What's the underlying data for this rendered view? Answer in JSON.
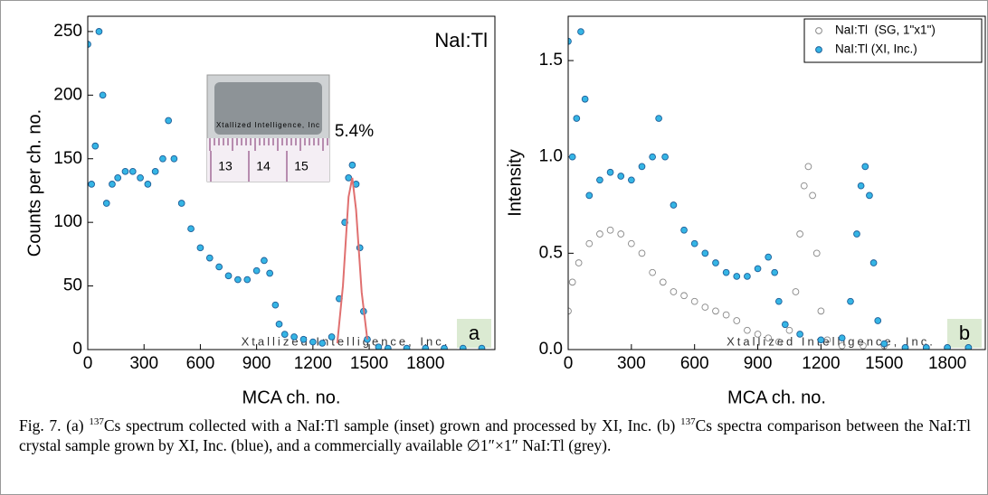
{
  "chart_data": [
    {
      "type": "scatter",
      "ylabel": "Counts per ch. no.",
      "xlabel": "MCA ch. no.",
      "annotations": [
        "NaI:Tl",
        "5.4%"
      ],
      "panel_label": "a",
      "watermark": "Xtallized Intelligence, Inc.",
      "inset": {
        "text": "Xtallized Intelligence, Inc",
        "ruler_labels": [
          "13",
          "14",
          "15"
        ]
      },
      "xlim": [
        0,
        2170
      ],
      "ylim": [
        0,
        262
      ],
      "xticks": [
        0,
        300,
        600,
        900,
        1200,
        1500,
        1800
      ],
      "yticks": [
        0,
        50,
        100,
        150,
        200,
        250
      ],
      "series": [
        {
          "color": "#35b5e5",
          "marker": "filled",
          "x": [
            0,
            20,
            40,
            60,
            80,
            100,
            130,
            160,
            200,
            240,
            280,
            320,
            360,
            400,
            430,
            460,
            500,
            550,
            600,
            650,
            700,
            750,
            800,
            850,
            900,
            940,
            970,
            1000,
            1020,
            1050,
            1100,
            1150,
            1200,
            1250,
            1300,
            1340,
            1370,
            1390,
            1410,
            1430,
            1450,
            1470,
            1490,
            1550,
            1600,
            1700,
            1800,
            1900,
            2000,
            2100
          ],
          "values": [
            240,
            130,
            160,
            250,
            200,
            115,
            130,
            135,
            140,
            140,
            135,
            130,
            140,
            150,
            180,
            150,
            115,
            95,
            80,
            72,
            65,
            58,
            55,
            55,
            62,
            70,
            60,
            35,
            20,
            12,
            10,
            8,
            6,
            5,
            10,
            40,
            100,
            135,
            145,
            130,
            80,
            30,
            8,
            2,
            1,
            1,
            1,
            1,
            1,
            1
          ]
        }
      ],
      "fit": {
        "color": "#e07070",
        "x": [
          1330,
          1360,
          1390,
          1410,
          1430,
          1460,
          1490
        ],
        "values": [
          5,
          50,
          120,
          135,
          110,
          45,
          8
        ]
      }
    },
    {
      "type": "scatter",
      "ylabel": "Intensity",
      "xlabel": "MCA ch. no.",
      "panel_label": "b",
      "watermark": "Xtallized Intelligence, Inc.",
      "legend": "top-right",
      "xlim": [
        0,
        1980
      ],
      "ylim": [
        0,
        1.73
      ],
      "xticks": [
        0,
        300,
        600,
        900,
        1200,
        1500,
        1800
      ],
      "yticks": [
        {
          "value": 0,
          "label": "0.0"
        },
        0.5,
        {
          "value": 1,
          "label": "1.0"
        },
        1.5
      ],
      "series": [
        {
          "name": "NaI:Tl  (SG, 1\"x1\")",
          "color": "#888888",
          "marker": "open",
          "x": [
            0,
            20,
            50,
            100,
            150,
            200,
            250,
            300,
            350,
            400,
            450,
            500,
            550,
            600,
            650,
            700,
            750,
            800,
            850,
            900,
            950,
            1000,
            1050,
            1080,
            1100,
            1120,
            1140,
            1160,
            1180,
            1200,
            1230,
            1300,
            1400,
            1500,
            1600,
            1700,
            1800,
            1900
          ],
          "values": [
            0.2,
            0.35,
            0.45,
            0.55,
            0.6,
            0.62,
            0.6,
            0.55,
            0.5,
            0.4,
            0.35,
            0.3,
            0.28,
            0.25,
            0.22,
            0.2,
            0.18,
            0.15,
            0.1,
            0.08,
            0.06,
            0.04,
            0.1,
            0.3,
            0.6,
            0.85,
            0.95,
            0.8,
            0.5,
            0.2,
            0.05,
            0.02,
            0.02,
            0.02,
            0.01,
            0.01,
            0.01,
            0.01
          ]
        },
        {
          "name": "NaI:Tl (XI, Inc.)",
          "color": "#35b5e5",
          "marker": "filled",
          "x": [
            0,
            20,
            40,
            60,
            80,
            100,
            150,
            200,
            250,
            300,
            350,
            400,
            430,
            460,
            500,
            550,
            600,
            650,
            700,
            750,
            800,
            850,
            900,
            950,
            980,
            1000,
            1030,
            1100,
            1200,
            1300,
            1340,
            1370,
            1390,
            1410,
            1430,
            1450,
            1470,
            1500,
            1600,
            1700,
            1800,
            1900
          ],
          "values": [
            1.6,
            1.0,
            1.2,
            1.65,
            1.3,
            0.8,
            0.88,
            0.92,
            0.9,
            0.88,
            0.95,
            1.0,
            1.2,
            1.0,
            0.75,
            0.62,
            0.55,
            0.5,
            0.45,
            0.4,
            0.38,
            0.38,
            0.42,
            0.48,
            0.4,
            0.25,
            0.13,
            0.08,
            0.05,
            0.06,
            0.25,
            0.6,
            0.85,
            0.95,
            0.8,
            0.45,
            0.15,
            0.03,
            0.01,
            0.01,
            0.01,
            0.01
          ]
        }
      ]
    }
  ],
  "caption": [
    {
      "text": "Fig. 7. (a) "
    },
    {
      "text": "137",
      "superscript": true
    },
    {
      "text": "Cs spectrum collected with a NaI:Tl sample (inset) grown and processed by XI, Inc. (b) "
    },
    {
      "text": "137",
      "superscript": true
    },
    {
      "text": "Cs spectra comparison between the NaI:Tl crystal sample grown by XI, Inc. (blue), and a commercially available ∅1″×1″ NaI:Tl (grey)."
    }
  ]
}
